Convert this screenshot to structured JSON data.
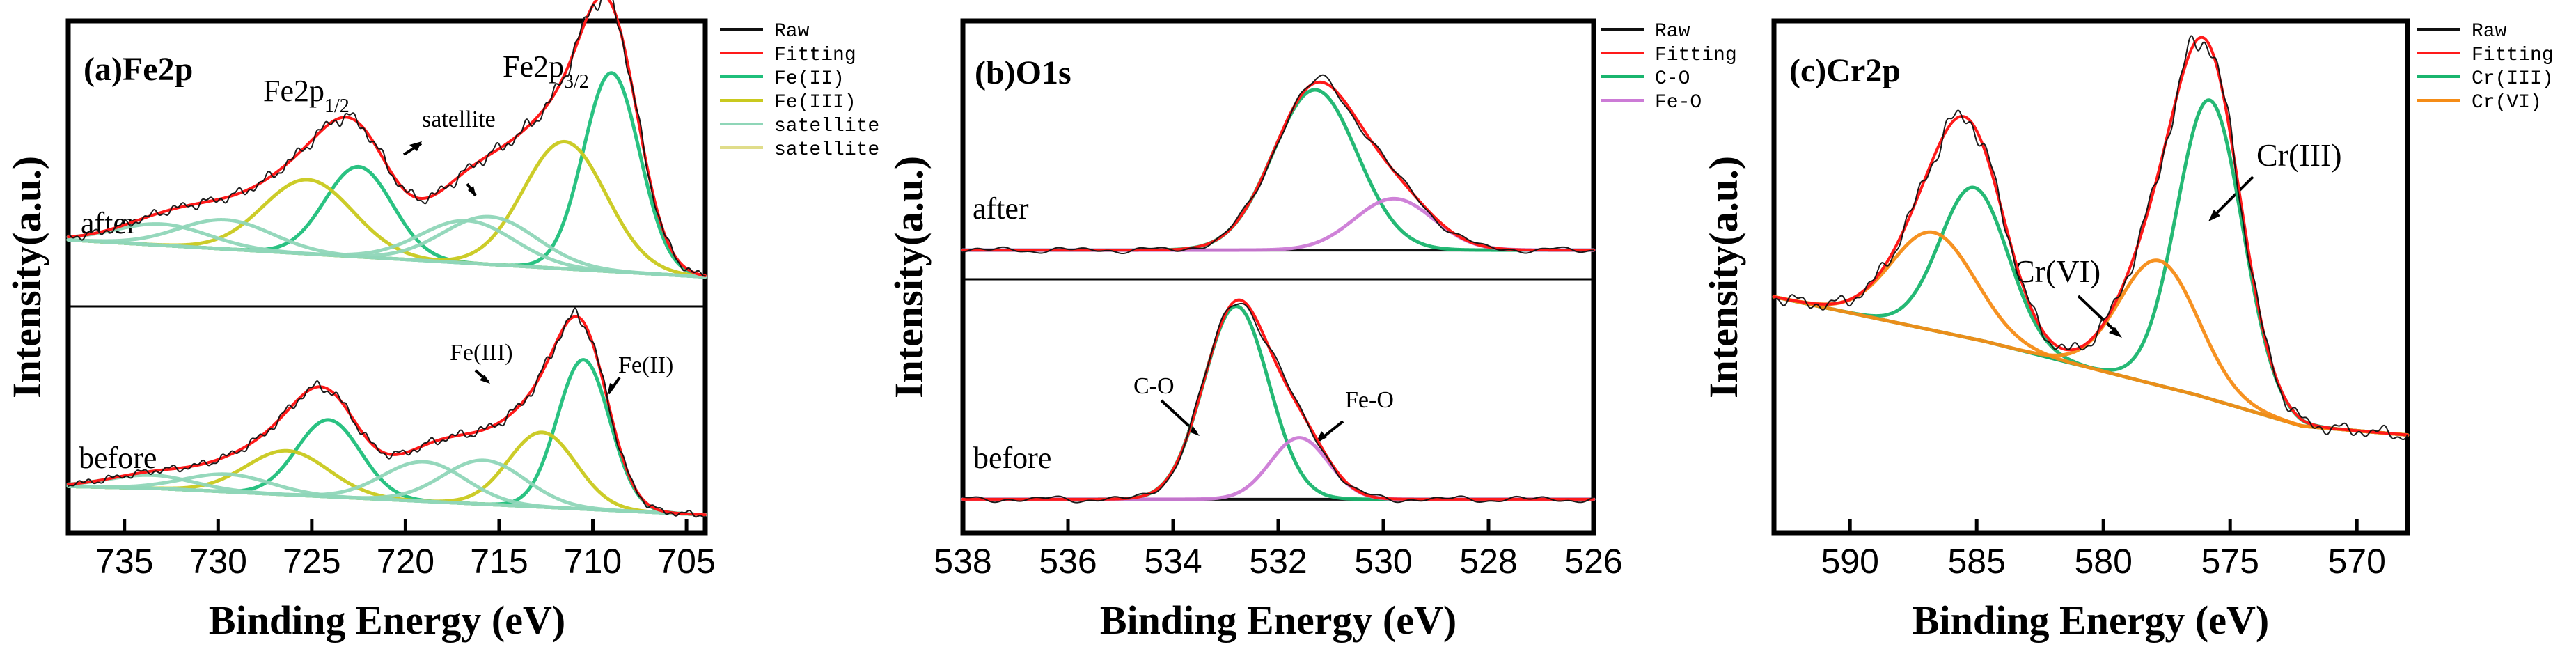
{
  "figure": {
    "panels": [
      {
        "id": "a",
        "title": "(a)Fe2p",
        "xlabel": "Binding Energy (eV)",
        "ylabel": "Intensity(a.u.)",
        "xticks": [
          "735",
          "730",
          "725",
          "720",
          "715",
          "710",
          "705"
        ],
        "conditions": [
          "after",
          "before"
        ],
        "annotations": [
          "satellite",
          "Fe(III)",
          "Fe(II)"
        ],
        "legend": [
          {
            "name": "Raw",
            "color": "#111111"
          },
          {
            "name": "Fitting",
            "color": "#ff1a1a"
          },
          {
            "name": "Fe(II)",
            "color": "#1fbf7b"
          },
          {
            "name": "Fe(III)",
            "color": "#c9c91e"
          },
          {
            "name": "satellite",
            "color": "#8fd6b8"
          },
          {
            "name": "satellite",
            "color": "#e0dd8a"
          }
        ]
      },
      {
        "id": "b",
        "title": "(b)O1s",
        "xlabel": "Binding Energy (eV)",
        "ylabel": "Intensity(a.u.)",
        "xticks": [
          "538",
          "536",
          "534",
          "532",
          "530",
          "528",
          "526"
        ],
        "conditions": [
          "after",
          "before"
        ],
        "annotations": [
          "C-O",
          "Fe-O"
        ],
        "legend": [
          {
            "name": "Raw",
            "color": "#111111"
          },
          {
            "name": "Fitting",
            "color": "#ff1a1a"
          },
          {
            "name": "C-O",
            "color": "#19b56e"
          },
          {
            "name": "Fe-O",
            "color": "#cc7bd6"
          }
        ]
      },
      {
        "id": "c",
        "title": "(c)Cr2p",
        "xlabel": "Binding Energy (eV)",
        "ylabel": "Intensity(a.u.)",
        "xticks": [
          "590",
          "585",
          "580",
          "575",
          "570"
        ],
        "annotations": [
          "Cr(III)",
          "Cr(VI)"
        ],
        "legend": [
          {
            "name": "Raw",
            "color": "#111111"
          },
          {
            "name": "Fitting",
            "color": "#ff1a1a"
          },
          {
            "name": "Cr(III)",
            "color": "#19b56e"
          },
          {
            "name": "Cr(VI)",
            "color": "#f58c16"
          }
        ]
      }
    ]
  },
  "chart_data": [
    {
      "type": "line",
      "title": "(a)Fe2p",
      "xlabel": "Binding Energy (eV)",
      "ylabel": "Intensity(a.u.)",
      "xlim": [
        738,
        704
      ],
      "x_reversed": true,
      "subplots": [
        {
          "name": "after",
          "ylim": [
            0,
            1
          ],
          "baseline": [
            0.22,
            0.2,
            0.18,
            0.16,
            0.14,
            0.12,
            0.1,
            0.08
          ],
          "components": [
            {
              "name": "Fe(II)",
              "center": 709.0,
              "height": 0.75,
              "width": 1.5
            },
            {
              "name": "Fe(II)",
              "center": 722.5,
              "height": 0.34,
              "width": 1.8
            },
            {
              "name": "Fe(III)",
              "center": 711.5,
              "height": 0.48,
              "width": 2.2
            },
            {
              "name": "Fe(III)",
              "center": 725.2,
              "height": 0.28,
              "width": 2.4
            },
            {
              "name": "satellite",
              "center": 715.5,
              "height": 0.18,
              "width": 2.5
            },
            {
              "name": "satellite",
              "center": 716.7,
              "height": 0.16,
              "width": 2.5
            },
            {
              "name": "satellite",
              "center": 729.6,
              "height": 0.11,
              "width": 2.5
            },
            {
              "name": "satellite",
              "center": 733.0,
              "height": 0.08,
              "width": 2.5
            }
          ]
        },
        {
          "name": "before",
          "ylim": [
            0,
            1
          ],
          "baseline": [
            0.18,
            0.17,
            0.15,
            0.13,
            0.11,
            0.09,
            0.07,
            0.05
          ],
          "components": [
            {
              "name": "Fe(II)",
              "center": 710.5,
              "height": 0.68,
              "width": 1.4
            },
            {
              "name": "Fe(II)",
              "center": 724.1,
              "height": 0.35,
              "width": 1.7
            },
            {
              "name": "Fe(III)",
              "center": 712.7,
              "height": 0.34,
              "width": 1.8
            },
            {
              "name": "Fe(III)",
              "center": 726.3,
              "height": 0.2,
              "width": 2.2
            },
            {
              "name": "satellite",
              "center": 715.8,
              "height": 0.2,
              "width": 2.2
            },
            {
              "name": "satellite",
              "center": 719.0,
              "height": 0.18,
              "width": 2.2
            },
            {
              "name": "satellite",
              "center": 729.5,
              "height": 0.08,
              "width": 2.3
            },
            {
              "name": "satellite",
              "center": 733.6,
              "height": 0.06,
              "width": 2.3
            }
          ]
        }
      ]
    },
    {
      "type": "line",
      "title": "(b)O1s",
      "xlabel": "Binding Energy (eV)",
      "ylabel": "Intensity(a.u.)",
      "xlim": [
        538,
        526
      ],
      "x_reversed": true,
      "subplots": [
        {
          "name": "after",
          "ylim": [
            0,
            1
          ],
          "baseline": [
            0.02,
            0.02,
            0.02,
            0.02,
            0.02,
            0.02,
            0.02
          ],
          "components": [
            {
              "name": "C-O",
              "center": 531.3,
              "height": 0.78,
              "width": 0.8
            },
            {
              "name": "Fe-O",
              "center": 529.8,
              "height": 0.25,
              "width": 0.75
            }
          ]
        },
        {
          "name": "before",
          "ylim": [
            0,
            1
          ],
          "baseline": [
            0.01,
            0.01,
            0.01,
            0.01,
            0.01,
            0.01,
            0.01
          ],
          "components": [
            {
              "name": "C-O",
              "center": 532.8,
              "height": 0.88,
              "width": 0.62
            },
            {
              "name": "Fe-O",
              "center": 531.6,
              "height": 0.28,
              "width": 0.55
            }
          ]
        }
      ]
    },
    {
      "type": "line",
      "title": "(c)Cr2p",
      "xlabel": "Binding Energy (eV)",
      "ylabel": "Intensity(a.u.)",
      "xlim": [
        593,
        568
      ],
      "x_reversed": true,
      "ylim": [
        0,
        1
      ],
      "baseline": [
        0.42,
        0.37,
        0.32,
        0.26,
        0.2,
        0.13,
        0.11
      ],
      "components": [
        {
          "name": "Cr(III)",
          "center": 575.8,
          "height": 0.67,
          "width": 1.3
        },
        {
          "name": "Cr(III)",
          "center": 585.1,
          "height": 0.34,
          "width": 1.35
        },
        {
          "name": "Cr(VI)",
          "center": 577.8,
          "height": 0.28,
          "width": 1.55
        },
        {
          "name": "Cr(VI)",
          "center": 586.7,
          "height": 0.22,
          "width": 1.65
        }
      ]
    }
  ]
}
